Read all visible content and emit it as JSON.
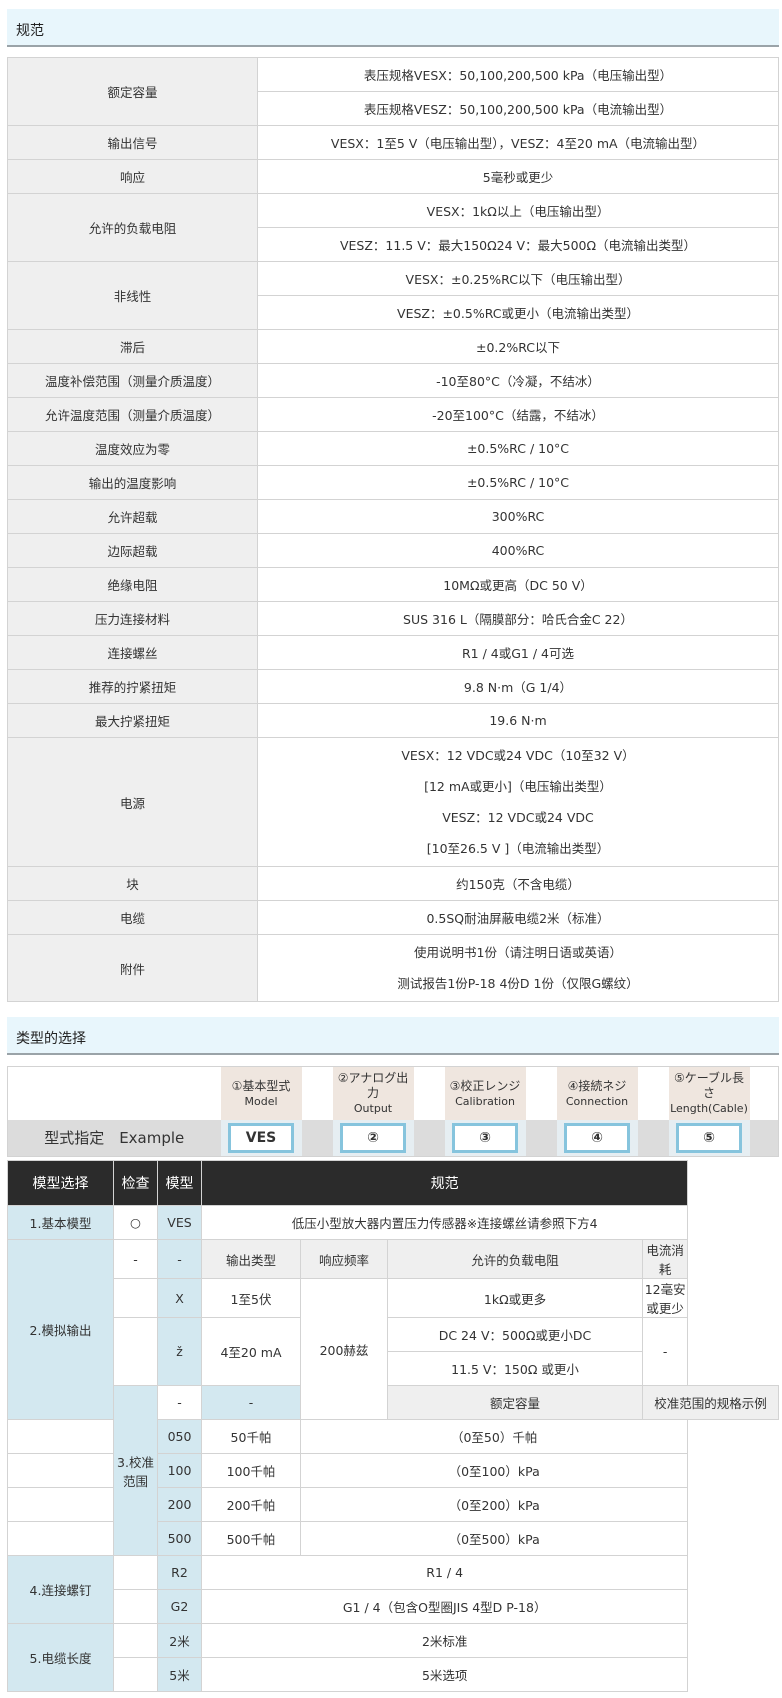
{
  "spec_section": {
    "title": "规范",
    "rows": [
      {
        "key": "额定容量",
        "values": [
          "表压规格VESX：50,100,200,500 kPa（电压输出型）",
          "表压规格VESZ：50,100,200,500 kPa（电流输出型）"
        ]
      },
      {
        "key": "输出信号",
        "values": [
          "VESX：1至5 V（电压输出型），VESZ：4至20 mA（电流输出型）"
        ]
      },
      {
        "key": "响应",
        "values": [
          "5毫秒或更少"
        ]
      },
      {
        "key": "允许的负载电阻",
        "values": [
          "VESX：1kΩ以上（电压输出型）",
          "VESZ：11.5 V：最大150Ω24 V：最大500Ω（电流输出类型）"
        ]
      },
      {
        "key": "非线性",
        "values": [
          "VESX：±0.25%RC以下（电压输出型）",
          "VESZ：±0.5%RC或更小（电流输出类型）"
        ]
      },
      {
        "key": "滞后",
        "values": [
          "±0.2%RC以下"
        ]
      },
      {
        "key": "温度补偿范围（测量介质温度）",
        "values": [
          "-10至80°C（冷凝，不结冰）"
        ]
      },
      {
        "key": "允许温度范围（测量介质温度）",
        "values": [
          "-20至100°C（结露，不结冰）"
        ]
      },
      {
        "key": "温度效应为零",
        "values": [
          "±0.5%RC / 10°C"
        ]
      },
      {
        "key": "输出的温度影响",
        "values": [
          "±0.5%RC / 10°C"
        ]
      },
      {
        "key": "允许超载",
        "values": [
          "300%RC"
        ]
      },
      {
        "key": "边际超载",
        "values": [
          "400%RC"
        ]
      },
      {
        "key": "绝缘电阻",
        "values": [
          "10MΩ或更高（DC 50 V）"
        ]
      },
      {
        "key": "压力连接材料",
        "values": [
          "SUS 316 L（隔膜部分：哈氏合金C 22）"
        ]
      },
      {
        "key": "连接螺丝",
        "values": [
          "R1 / 4或G1 / 4可选"
        ]
      },
      {
        "key": "推荐的拧紧扭矩",
        "values": [
          "9.8 N·m（G 1/4）"
        ]
      },
      {
        "key": "最大拧紧扭矩",
        "values": [
          "19.6 N·m"
        ]
      },
      {
        "key": "电源",
        "multiline": [
          "VESX：12 VDC或24 VDC（10至32 V）",
          "[12 mA或更小]（电压输出类型）",
          "VESZ：12 VDC或24 VDC",
          "[10至26.5 V ]（电流输出类型）"
        ]
      },
      {
        "key": "块",
        "values": [
          "约150克（不含电缆）"
        ]
      },
      {
        "key": "电缆",
        "values": [
          "0.5SQ耐油屏蔽电缆2米（标准）"
        ]
      },
      {
        "key": "附件",
        "multiline": [
          "使用说明书1份（请注明日语或英语）",
          "测试报告1份P-18 4份D 1份（仅限G螺纹）"
        ]
      }
    ]
  },
  "type_section": {
    "title": "类型的选择"
  },
  "example": {
    "label": "型式指定　Example",
    "parts": [
      {
        "jp": "①基本型式",
        "en": "Model",
        "box": "VES"
      },
      {
        "jp": "②アナログ出力",
        "en": "Output",
        "box": "②"
      },
      {
        "jp": "③校正レンジ",
        "en": "Calibration",
        "box": "③"
      },
      {
        "jp": "④接続ネジ",
        "en": "Connection",
        "box": "④"
      },
      {
        "jp": "⑤ケーブル長さ",
        "en": "Length(Cable)",
        "box": "⑤"
      }
    ],
    "box_border": "#86c4dd"
  },
  "selection": {
    "headers": [
      "模型选择",
      "检查",
      "模型",
      "规范"
    ],
    "basic": {
      "group": "1.基本模型",
      "check": "○",
      "code": "VES",
      "spec": "低压小型放大器内置压力传感器※连接螺丝请参照下方4"
    },
    "analog": {
      "group": "2.模拟输出",
      "dash": "-",
      "sub_headers": [
        "输出类型",
        "响应频率",
        "允许的负载电阻",
        "电流消耗"
      ],
      "rows": [
        {
          "code": "X",
          "type": "1至5伏",
          "load": [
            "1kΩ或更多"
          ],
          "current": "12毫安或更少"
        },
        {
          "code": "ž",
          "type": "4至20 mA",
          "load": [
            "DC 24 V：500Ω或更小DC",
            "11.5 V：150Ω 或更小"
          ],
          "current": "-"
        }
      ],
      "freq": "200赫兹"
    },
    "calib": {
      "group": "3.校准范围",
      "dash": "-",
      "sub_headers": [
        "额定容量",
        "校准范围的规格示例"
      ],
      "rows": [
        {
          "code": "050",
          "cap": "50千帕",
          "ex": "（0至50）千帕"
        },
        {
          "code": "100",
          "cap": "100千帕",
          "ex": "（0至100）kPa"
        },
        {
          "code": "200",
          "cap": "200千帕",
          "ex": "（0至200）kPa"
        },
        {
          "code": "500",
          "cap": "500千帕",
          "ex": "（0至500）kPa"
        }
      ]
    },
    "conn": {
      "group": "4.连接螺钉",
      "rows": [
        {
          "code": "R2",
          "spec": "R1 / 4"
        },
        {
          "code": "G2",
          "spec": "G1 / 4（包含O型圈JIS 4型D P-18）"
        }
      ]
    },
    "cable": {
      "group": "5.电缆长度",
      "rows": [
        {
          "code": "2米",
          "spec": "2米标准"
        },
        {
          "code": "5米",
          "spec": "5米选项"
        }
      ]
    },
    "colors": {
      "header_bg": "#2b2b2b",
      "group_bg": "#d3e8f0",
      "subheader_bg": "#efefef"
    }
  }
}
